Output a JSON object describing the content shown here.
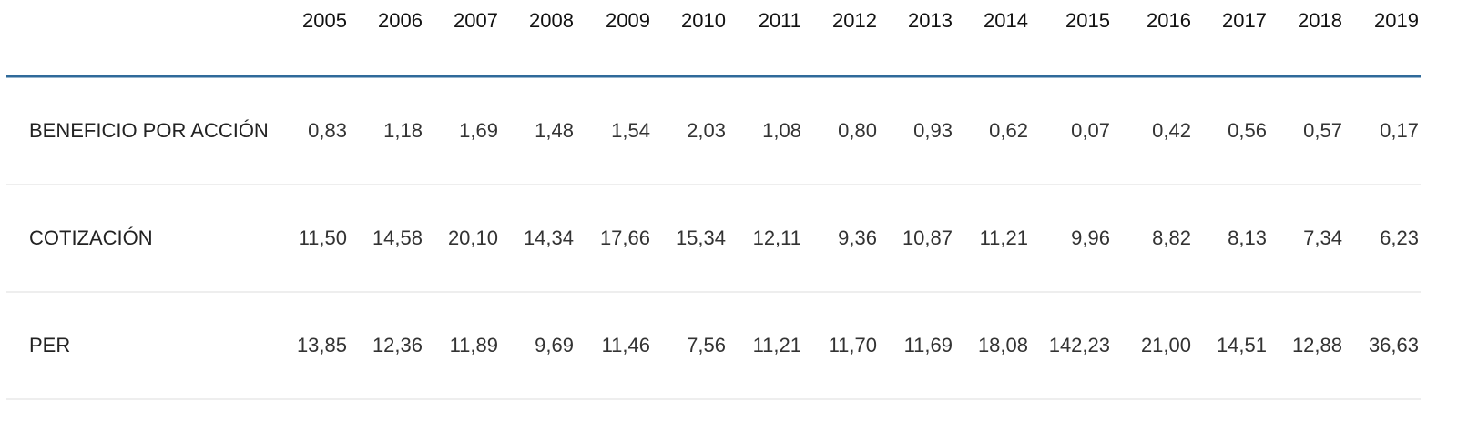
{
  "table": {
    "columns": [
      "2005",
      "2006",
      "2007",
      "2008",
      "2009",
      "2010",
      "2011",
      "2012",
      "2013",
      "2014",
      "2015",
      "2016",
      "2017",
      "2018",
      "2019"
    ],
    "rows": [
      {
        "label": "BENEFICIO POR ACCIÓN",
        "values": [
          "0,83",
          "1,18",
          "1,69",
          "1,48",
          "1,54",
          "2,03",
          "1,08",
          "0,80",
          "0,93",
          "0,62",
          "0,07",
          "0,42",
          "0,56",
          "0,57",
          "0,17"
        ]
      },
      {
        "label": "COTIZACIÓN",
        "values": [
          "11,50",
          "14,58",
          "20,10",
          "14,34",
          "17,66",
          "15,34",
          "12,11",
          "9,36",
          "10,87",
          "11,21",
          "9,96",
          "8,82",
          "8,13",
          "7,34",
          "6,23"
        ]
      },
      {
        "label": "PER",
        "values": [
          "13,85",
          "12,36",
          "11,89",
          "9,69",
          "11,46",
          "7,56",
          "11,21",
          "11,70",
          "11,69",
          "18,08",
          "142,23",
          "21,00",
          "14,51",
          "12,88",
          "36,63"
        ]
      }
    ]
  }
}
